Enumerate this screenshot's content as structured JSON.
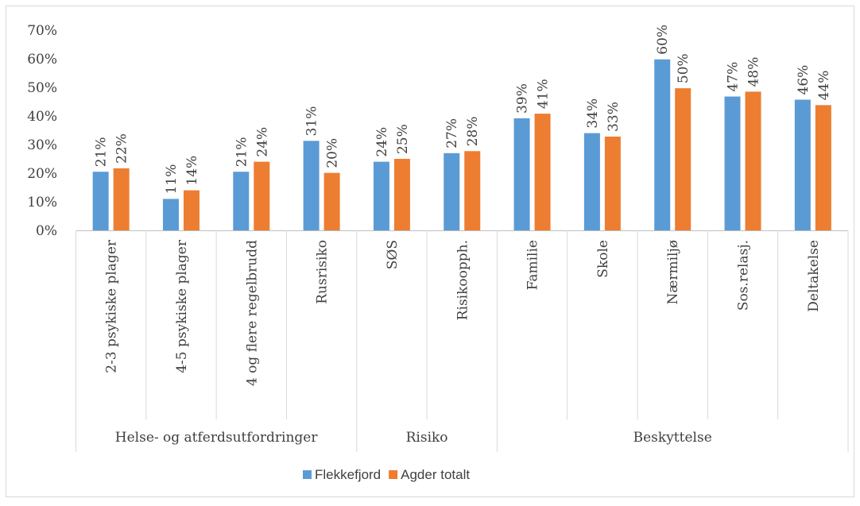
{
  "chart_data": {
    "type": "bar",
    "y_axis": {
      "min": 0,
      "max": 0.7,
      "step": 0.1,
      "tick_labels": [
        "0%",
        "10%",
        "20%",
        "30%",
        "40%",
        "50%",
        "60%",
        "70%"
      ]
    },
    "grid": false,
    "categories": [
      "2-3 psykiske plager",
      "4-5 psykiske plager",
      "4 og flere regelbrudd",
      "Rusrisiko",
      "SØS",
      "Risikoopph.",
      "Familie",
      "Skole",
      "Nærmiljø",
      "Sos.relasj.",
      "Deltakelse"
    ],
    "groups": [
      {
        "label": "Helse- og atferdsutfordringer",
        "count": 4
      },
      {
        "label": "Risiko",
        "count": 2
      },
      {
        "label": "Beskyttelse",
        "count": 5
      }
    ],
    "series": [
      {
        "name": "Flekkefjord",
        "color": "#5b9bd5",
        "values": [
          0.205,
          0.11,
          0.205,
          0.313,
          0.24,
          0.27,
          0.392,
          0.34,
          0.598,
          0.468,
          0.457
        ],
        "labels": [
          "21%",
          "11%",
          "21%",
          "31%",
          "24%",
          "27%",
          "39%",
          "34%",
          "60%",
          "47%",
          "46%"
        ]
      },
      {
        "name": "Agder totalt",
        "color": "#ed7d31",
        "values": [
          0.217,
          0.14,
          0.24,
          0.201,
          0.25,
          0.277,
          0.408,
          0.328,
          0.497,
          0.485,
          0.438
        ],
        "labels": [
          "22%",
          "14%",
          "24%",
          "20%",
          "25%",
          "28%",
          "41%",
          "33%",
          "50%",
          "48%",
          "44%"
        ]
      }
    ],
    "legend_position": "bottom"
  }
}
